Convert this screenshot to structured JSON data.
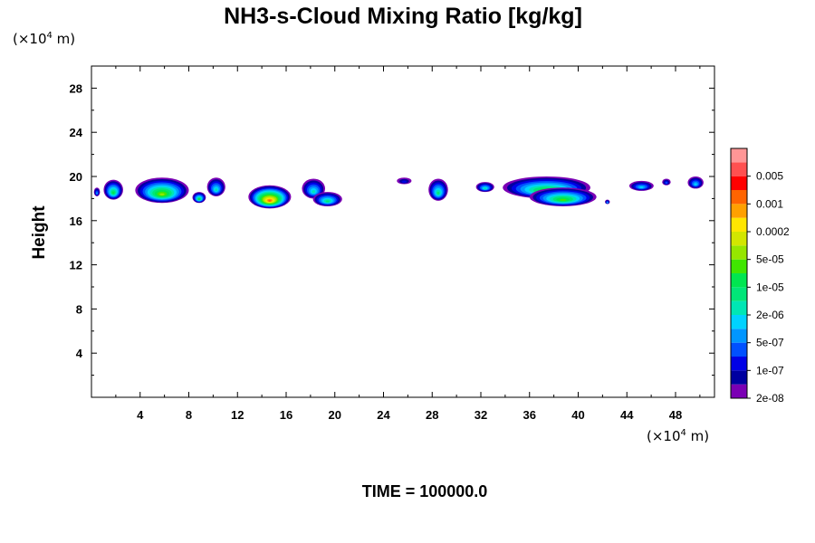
{
  "chart_data": {
    "type": "heatmap",
    "title": "NH3-s-Cloud Mixing Ratio [kg/kg]",
    "ylabel": "Height",
    "y_unit": {
      "prefix": "(×10",
      "exp": "4",
      "suffix": " m)"
    },
    "x_unit": {
      "prefix": "(×10",
      "exp": "4",
      "suffix": " m)"
    },
    "xlim": [
      0,
      51.2
    ],
    "ylim": [
      0,
      30
    ],
    "x_ticks": [
      4,
      8,
      12,
      16,
      20,
      24,
      28,
      32,
      36,
      40,
      44,
      48
    ],
    "y_ticks": [
      4,
      8,
      12,
      16,
      20,
      24,
      28
    ],
    "footer": "TIME = 100000.0",
    "colorbar": {
      "labels": [
        "0.005",
        "0.001",
        "0.0002",
        "5e-05",
        "1e-05",
        "2e-06",
        "5e-07",
        "1e-07",
        "2e-08"
      ],
      "colors": [
        "#7b00b4",
        "#0000a0",
        "#0000e6",
        "#0050ff",
        "#0096ff",
        "#00d2ff",
        "#00e6b4",
        "#00e678",
        "#00e650",
        "#40e600",
        "#96e600",
        "#d2e600",
        "#ffe600",
        "#ffa000",
        "#ff6400",
        "#ff0000",
        "#ff5050",
        "#ff9696"
      ]
    },
    "clouds": [
      {
        "x": [
          0.2,
          0.7
        ],
        "y": [
          18.2,
          19.0
        ],
        "peak": 4
      },
      {
        "x": [
          1.0,
          2.6
        ],
        "y": [
          17.9,
          19.7
        ],
        "peak": 8
      },
      {
        "x": [
          3.6,
          8.0
        ],
        "y": [
          17.6,
          19.9
        ],
        "peak": 10
      },
      {
        "x": [
          8.3,
          9.4
        ],
        "y": [
          17.6,
          18.6
        ],
        "peak": 8
      },
      {
        "x": [
          9.5,
          11.0
        ],
        "y": [
          18.2,
          19.9
        ],
        "peak": 6
      },
      {
        "x": [
          12.9,
          16.4
        ],
        "y": [
          17.1,
          19.2
        ],
        "peak": 14
      },
      {
        "x": [
          17.3,
          19.2
        ],
        "y": [
          18.0,
          19.8
        ],
        "peak": 6
      },
      {
        "x": [
          18.2,
          20.6
        ],
        "y": [
          17.3,
          18.6
        ],
        "peak": 7
      },
      {
        "x": [
          25.1,
          26.3
        ],
        "y": [
          19.3,
          19.9
        ],
        "peak": 2
      },
      {
        "x": [
          27.7,
          29.3
        ],
        "y": [
          17.8,
          19.8
        ],
        "peak": 7
      },
      {
        "x": [
          31.6,
          33.1
        ],
        "y": [
          18.6,
          19.5
        ],
        "peak": 6
      },
      {
        "x": [
          33.8,
          41.0
        ],
        "y": [
          18.0,
          20.0
        ],
        "peak": 9
      },
      {
        "x": [
          36.0,
          41.5
        ],
        "y": [
          17.3,
          19.0
        ],
        "peak": 9
      },
      {
        "x": [
          44.2,
          46.2
        ],
        "y": [
          18.7,
          19.6
        ],
        "peak": 5
      },
      {
        "x": [
          46.9,
          47.6
        ],
        "y": [
          19.2,
          19.8
        ],
        "peak": 3
      },
      {
        "x": [
          49.0,
          50.3
        ],
        "y": [
          18.9,
          20.0
        ],
        "peak": 5
      },
      {
        "x": [
          42.2,
          42.6
        ],
        "y": [
          17.5,
          17.9
        ],
        "peak": 4
      }
    ]
  }
}
